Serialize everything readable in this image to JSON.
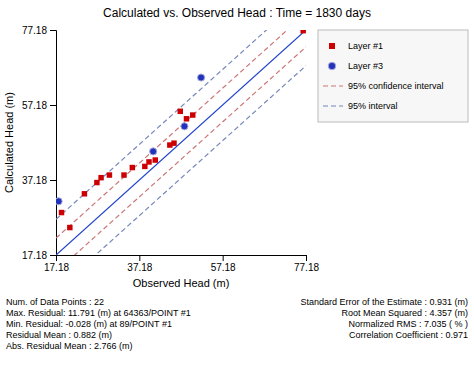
{
  "chart_data": {
    "type": "scatter",
    "title": "Calculated vs. Observed Head : Time = 1830 days",
    "xlabel": "Observed Head (m)",
    "ylabel": "Calculated Head (m)",
    "xlim": [
      17.18,
      77.18
    ],
    "ylim": [
      17.18,
      77.18
    ],
    "xticks": [
      17.18,
      37.18,
      57.18,
      77.18
    ],
    "yticks": [
      17.18,
      37.18,
      57.18,
      77.18
    ],
    "grid": false,
    "series": [
      {
        "name": "Layer #1",
        "color": "#cc0000",
        "marker": "square",
        "x": [
          17.8,
          18.5,
          20.5,
          24.0,
          27.0,
          28.0,
          30.0,
          33.5,
          35.5,
          38.5,
          39.5,
          41.0,
          44.5,
          45.5,
          47.0,
          48.5,
          50.0,
          76.5
        ],
        "values": [
          31.5,
          28.5,
          24.5,
          33.5,
          36.5,
          37.8,
          38.5,
          38.5,
          40.5,
          40.8,
          42.0,
          42.5,
          46.5,
          47.0,
          55.5,
          53.5,
          54.5,
          77.0
        ]
      },
      {
        "name": "Layer #3",
        "color": "#2233bb",
        "marker": "circle",
        "x": [
          17.8,
          40.5,
          48.0,
          52.0
        ],
        "values": [
          31.5,
          44.8,
          51.5,
          64.5
        ]
      }
    ],
    "identity_line": {
      "color": "#2244cc"
    },
    "bands": [
      {
        "name": "95% confidence interval",
        "color": "#cc7777",
        "line_style": "dashed",
        "offset": 4.5
      },
      {
        "name": "95% interval",
        "color": "#7788bb",
        "line_style": "dashed",
        "offset": 9.5
      }
    ],
    "annotations": {
      "left": [
        "Num. of Data Points : 22",
        "Max. Residual: 11.791 (m) at 64363/POINT #1",
        "Min. Residual: -0.028 (m) at 89/POINT #1",
        "Residual Mean : 0.882 (m)",
        "Abs. Residual Mean : 2.766 (m)"
      ],
      "right": [
        "Standard Error of the Estimate : 0.931 (m)",
        "Root Mean Squared : 4.357 (m)",
        "Normalized RMS : 7.035 ( % )",
        "Correlation Coefficient : 0.971"
      ]
    }
  }
}
